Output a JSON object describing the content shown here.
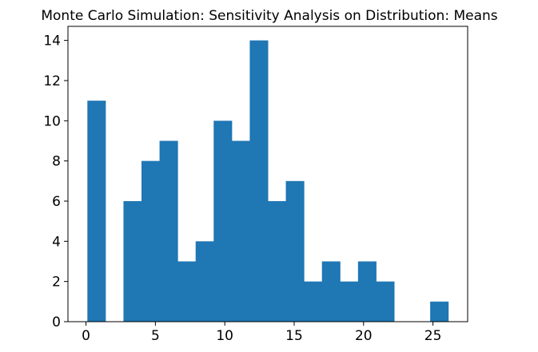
{
  "chart_data": {
    "type": "bar",
    "title": "Monte Carlo Simulation: Sensitivity Analysis on Distribution: Means",
    "xlabel": "",
    "ylabel": "",
    "xlim": [
      -1.3,
      27.5
    ],
    "ylim": [
      0,
      14.7
    ],
    "bar_color": "#1f77b4",
    "grid": false,
    "legend": "none",
    "x_ticks": [
      0,
      5,
      10,
      15,
      20,
      25
    ],
    "y_ticks": [
      0,
      2,
      4,
      6,
      8,
      10,
      12,
      14
    ],
    "bins": [
      {
        "x0": 0.1,
        "x1": 1.4,
        "count": 11
      },
      {
        "x0": 1.4,
        "x1": 2.7,
        "count": 0
      },
      {
        "x0": 2.7,
        "x1": 4.0,
        "count": 6
      },
      {
        "x0": 4.0,
        "x1": 5.3,
        "count": 8
      },
      {
        "x0": 5.3,
        "x1": 6.6,
        "count": 9
      },
      {
        "x0": 6.6,
        "x1": 7.9,
        "count": 3
      },
      {
        "x0": 7.9,
        "x1": 9.2,
        "count": 4
      },
      {
        "x0": 9.2,
        "x1": 10.5,
        "count": 10
      },
      {
        "x0": 10.5,
        "x1": 11.8,
        "count": 9
      },
      {
        "x0": 11.8,
        "x1": 13.1,
        "count": 14
      },
      {
        "x0": 13.1,
        "x1": 14.4,
        "count": 6
      },
      {
        "x0": 14.4,
        "x1": 15.7,
        "count": 7
      },
      {
        "x0": 15.7,
        "x1": 17.0,
        "count": 2
      },
      {
        "x0": 17.0,
        "x1": 18.3,
        "count": 3
      },
      {
        "x0": 18.3,
        "x1": 19.6,
        "count": 2
      },
      {
        "x0": 19.6,
        "x1": 20.9,
        "count": 3
      },
      {
        "x0": 20.9,
        "x1": 22.2,
        "count": 2
      },
      {
        "x0": 22.2,
        "x1": 23.5,
        "count": 0
      },
      {
        "x0": 23.5,
        "x1": 24.8,
        "count": 0
      },
      {
        "x0": 24.8,
        "x1": 26.1,
        "count": 1
      }
    ]
  }
}
